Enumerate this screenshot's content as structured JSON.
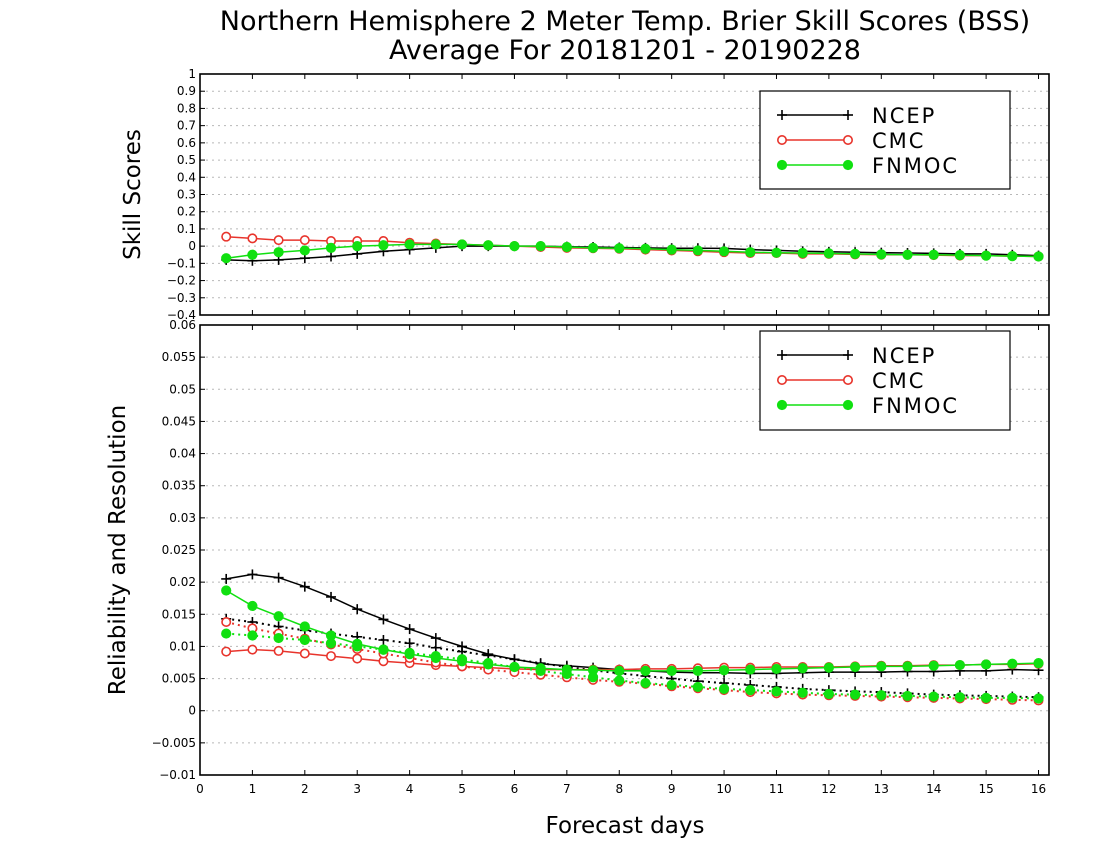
{
  "title_line1": "Northern Hemisphere 2 Meter Temp. Brier Skill Scores (BSS)",
  "title_line2": "Average For 20181201 - 20190228",
  "xlabel": "Forecast days",
  "colors": {
    "NCEP": "#000000",
    "CMC": "#e8342c",
    "FNMOC": "#10e010"
  },
  "chart_data": [
    {
      "type": "line",
      "ylabel": "Skill Scores",
      "xlim": [
        0,
        16.2
      ],
      "ylim": [
        -0.4,
        1
      ],
      "grid": true,
      "legend_position": "top-right",
      "y_ticks": [
        "-0.4",
        "-0.3",
        "-0.2",
        "-0.1",
        "0",
        "0.1",
        "0.2",
        "0.3",
        "0.4",
        "0.5",
        "0.6",
        "0.7",
        "0.8",
        "0.9",
        "1"
      ],
      "x": [
        0.5,
        1,
        1.5,
        2,
        2.5,
        3,
        3.5,
        4,
        4.5,
        5,
        5.5,
        6,
        6.5,
        7,
        7.5,
        8,
        8.5,
        9,
        9.5,
        10,
        10.5,
        11,
        11.5,
        12,
        12.5,
        13,
        13.5,
        14,
        14.5,
        15,
        15.5,
        16
      ],
      "series": [
        {
          "name": "NCEP",
          "marker": "plus",
          "style": "solid",
          "values": [
            -0.08,
            -0.085,
            -0.08,
            -0.07,
            -0.06,
            -0.045,
            -0.03,
            -0.02,
            -0.01,
            0.0,
            0.0,
            0.0,
            0.0,
            -0.003,
            -0.005,
            -0.008,
            -0.01,
            -0.012,
            -0.012,
            -0.013,
            -0.02,
            -0.025,
            -0.03,
            -0.033,
            -0.035,
            -0.038,
            -0.04,
            -0.042,
            -0.045,
            -0.045,
            -0.05,
            -0.055
          ]
        },
        {
          "name": "CMC",
          "marker": "open-circle",
          "style": "solid",
          "values": [
            0.055,
            0.045,
            0.035,
            0.035,
            0.03,
            0.03,
            0.03,
            0.02,
            0.015,
            0.01,
            0.005,
            0.0,
            -0.005,
            -0.01,
            -0.012,
            -0.015,
            -0.02,
            -0.025,
            -0.03,
            -0.035,
            -0.04,
            -0.04,
            -0.045,
            -0.045,
            -0.048,
            -0.05,
            -0.05,
            -0.052,
            -0.055,
            -0.055,
            -0.058,
            -0.06
          ]
        },
        {
          "name": "FNMOC",
          "marker": "filled-circle",
          "style": "solid",
          "values": [
            -0.07,
            -0.05,
            -0.035,
            -0.025,
            -0.01,
            0.0,
            0.005,
            0.01,
            0.01,
            0.01,
            0.005,
            0.0,
            0.0,
            -0.005,
            -0.01,
            -0.012,
            -0.015,
            -0.02,
            -0.025,
            -0.03,
            -0.035,
            -0.038,
            -0.04,
            -0.042,
            -0.045,
            -0.048,
            -0.05,
            -0.05,
            -0.052,
            -0.055,
            -0.058,
            -0.06
          ]
        }
      ]
    },
    {
      "type": "line",
      "ylabel": "Reliability and Resolution",
      "xlim": [
        0,
        16.2
      ],
      "ylim": [
        -0.01,
        0.06
      ],
      "grid": true,
      "legend_position": "top-right",
      "y_ticks": [
        "-0.01",
        "-0.005",
        "0",
        "0.005",
        "0.01",
        "0.015",
        "0.02",
        "0.025",
        "0.03",
        "0.035",
        "0.04",
        "0.045",
        "0.05",
        "0.055",
        "0.06"
      ],
      "x_ticks": [
        "0",
        "1",
        "2",
        "3",
        "4",
        "5",
        "6",
        "7",
        "8",
        "9",
        "10",
        "11",
        "12",
        "13",
        "14",
        "15",
        "16"
      ],
      "x": [
        0.5,
        1,
        1.5,
        2,
        2.5,
        3,
        3.5,
        4,
        4.5,
        5,
        5.5,
        6,
        6.5,
        7,
        7.5,
        8,
        8.5,
        9,
        9.5,
        10,
        10.5,
        11,
        11.5,
        12,
        12.5,
        13,
        13.5,
        14,
        14.5,
        15,
        15.5,
        16
      ],
      "series": [
        {
          "name": "NCEP",
          "metric": "reliability",
          "marker": "plus",
          "style": "solid",
          "values": [
            0.0205,
            0.0212,
            0.0207,
            0.0193,
            0.0177,
            0.0158,
            0.0142,
            0.0127,
            0.0113,
            0.01,
            0.0088,
            0.008,
            0.0073,
            0.007,
            0.0067,
            0.0064,
            0.0062,
            0.006,
            0.0059,
            0.0059,
            0.0058,
            0.0058,
            0.0059,
            0.006,
            0.006,
            0.006,
            0.0061,
            0.0061,
            0.0062,
            0.0062,
            0.0064,
            0.0063
          ]
        },
        {
          "name": "NCEP",
          "metric": "resolution",
          "marker": "plus",
          "style": "dotted",
          "values": [
            0.0143,
            0.0138,
            0.0131,
            0.0125,
            0.012,
            0.0115,
            0.011,
            0.0105,
            0.0098,
            0.0092,
            0.0086,
            0.008,
            0.0074,
            0.0068,
            0.0063,
            0.0058,
            0.0054,
            0.005,
            0.0046,
            0.0043,
            0.004,
            0.0037,
            0.0034,
            0.0032,
            0.003,
            0.0029,
            0.0027,
            0.0025,
            0.0024,
            0.0023,
            0.0022,
            0.0021
          ]
        },
        {
          "name": "CMC",
          "metric": "reliability",
          "marker": "open-circle",
          "style": "solid",
          "values": [
            0.0092,
            0.0095,
            0.0093,
            0.0089,
            0.0085,
            0.0081,
            0.0077,
            0.0074,
            0.0071,
            0.0069,
            0.0067,
            0.0065,
            0.0064,
            0.0064,
            0.0064,
            0.0064,
            0.0065,
            0.0065,
            0.0066,
            0.0067,
            0.0067,
            0.0068,
            0.0068,
            0.0068,
            0.0069,
            0.007,
            0.007,
            0.0071,
            0.0071,
            0.0072,
            0.0072,
            0.0073
          ]
        },
        {
          "name": "CMC",
          "metric": "resolution",
          "marker": "open-circle",
          "style": "dotted",
          "values": [
            0.0138,
            0.0128,
            0.012,
            0.0112,
            0.0103,
            0.0096,
            0.0089,
            0.0082,
            0.0075,
            0.0069,
            0.0064,
            0.006,
            0.0056,
            0.0052,
            0.0048,
            0.0045,
            0.0042,
            0.0038,
            0.0035,
            0.0032,
            0.0029,
            0.0027,
            0.0025,
            0.0024,
            0.0023,
            0.0022,
            0.0021,
            0.002,
            0.0019,
            0.0018,
            0.0017,
            0.0016
          ]
        },
        {
          "name": "FNMOC",
          "metric": "reliability",
          "marker": "filled-circle",
          "style": "solid",
          "values": [
            0.0187,
            0.0163,
            0.0147,
            0.0131,
            0.0117,
            0.0104,
            0.0095,
            0.0088,
            0.0082,
            0.0077,
            0.0072,
            0.0068,
            0.0066,
            0.0064,
            0.0063,
            0.0062,
            0.0062,
            0.0062,
            0.0062,
            0.0063,
            0.0064,
            0.0065,
            0.0066,
            0.0067,
            0.0068,
            0.0069,
            0.0069,
            0.007,
            0.0071,
            0.0072,
            0.0073,
            0.0074
          ]
        },
        {
          "name": "FNMOC",
          "metric": "resolution",
          "marker": "filled-circle",
          "style": "dotted",
          "values": [
            0.012,
            0.0117,
            0.0113,
            0.011,
            0.0105,
            0.01,
            0.0095,
            0.009,
            0.0085,
            0.008,
            0.0074,
            0.0068,
            0.0062,
            0.0057,
            0.0052,
            0.0047,
            0.0043,
            0.004,
            0.0037,
            0.0034,
            0.0032,
            0.003,
            0.0028,
            0.0026,
            0.0025,
            0.0024,
            0.0023,
            0.0022,
            0.0021,
            0.002,
            0.002,
            0.0019
          ]
        }
      ]
    }
  ]
}
